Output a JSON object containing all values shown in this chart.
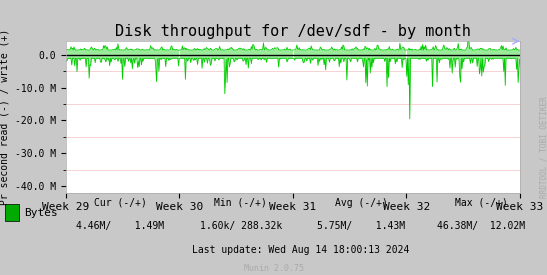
{
  "title": "Disk throughput for /dev/sdf - by month",
  "ylabel": "Pr second read (-) / write (+)",
  "x_labels": [
    "Week 29",
    "Week 30",
    "Week 31",
    "Week 32",
    "Week 33"
  ],
  "ylim": [
    -42000000,
    4200000
  ],
  "yticks": [
    0,
    -10000000,
    -20000000,
    -30000000,
    -40000000
  ],
  "ytick_labels": [
    "0.0",
    "-10.0 M",
    "-20.0 M",
    "-30.0 M",
    "-40.0 M"
  ],
  "bg_color": "#e8e8e8",
  "plot_bg_color": "#ffffff",
  "grid_color_major": "#ffffff",
  "grid_color_minor": "#f5c0c0",
  "line_color": "#00cc00",
  "zero_line_color": "#000000",
  "watermark_text": "RRDTOOL / TOBI OETIKER",
  "legend_label": "Bytes",
  "legend_color": "#00aa00",
  "footer_line1": "Cur (-/+)              Min (-/+)              Avg (-/+)              Max (-/+)",
  "footer_cur": "4.46M/    1.49M",
  "footer_min": "1.60k/ 288.32k",
  "footer_avg": "5.75M/    1.43M",
  "footer_max": "46.38M/  12.02M",
  "footer_update": "Last update: Wed Aug 14 18:00:13 2024",
  "munin_text": "Munin 2.0.75",
  "num_points": 600
}
